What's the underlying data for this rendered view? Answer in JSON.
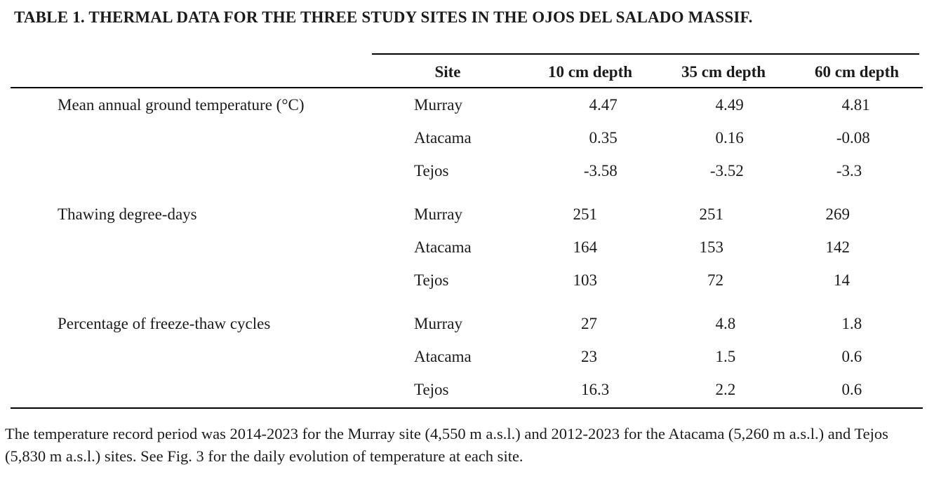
{
  "title": "TABLE 1. THERMAL DATA FOR THE THREE STUDY SITES IN THE OJOS DEL SALADO MASSIF.",
  "table": {
    "columns": {
      "site": "Site",
      "c1": "10 cm depth",
      "c2": "35 cm depth",
      "c3": "60 cm depth"
    },
    "groups": [
      {
        "label": "Mean annual ground temperature (°C)",
        "rows": [
          {
            "site": "Murray",
            "values": [
              "4.47",
              "4.49",
              "4.81"
            ]
          },
          {
            "site": "Atacama",
            "values": [
              "0.35",
              "0.16",
              "-0.08"
            ]
          },
          {
            "site": "Tejos",
            "values": [
              "-3.58",
              "-3.52",
              "-3.3"
            ]
          }
        ]
      },
      {
        "label": "Thawing degree-days",
        "rows": [
          {
            "site": "Murray",
            "values": [
              "251",
              "251",
              "269"
            ]
          },
          {
            "site": "Atacama",
            "values": [
              "164",
              "153",
              "142"
            ]
          },
          {
            "site": "Tejos",
            "values": [
              "103",
              "72",
              "14"
            ]
          }
        ]
      },
      {
        "label": "Percentage of freeze-thaw cycles",
        "rows": [
          {
            "site": "Murray",
            "values": [
              "27",
              "4.8",
              "1.8"
            ]
          },
          {
            "site": "Atacama",
            "values": [
              "23",
              "1.5",
              "0.6"
            ]
          },
          {
            "site": "Tejos",
            "values": [
              "16.3",
              "2.2",
              "0.6"
            ]
          }
        ]
      }
    ]
  },
  "footnote": "The temperature record period was 2014-2023 for the Murray site (4,550 m a.s.l.) and 2012-2023 for the Atacama (5,260 m a.s.l.) and Tejos (5,830 m a.s.l.) sites. See Fig. 3 for the daily evolution of temperature at each site."
}
